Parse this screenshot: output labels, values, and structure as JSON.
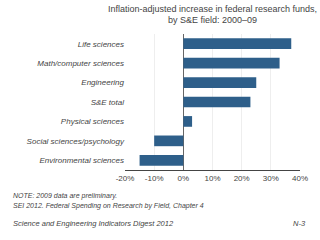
{
  "chart_data": {
    "type": "bar",
    "orientation": "horizontal",
    "title": "Inflation-adjusted increase in federal research funds,\nby S&E field: 2000–09",
    "categories": [
      "Life sciences",
      "Math/computer sciences",
      "Engineering",
      "S&E total",
      "Physical sciences",
      "Social sciences/psychology",
      "Environmental sciences"
    ],
    "values": [
      37,
      33,
      25,
      23,
      3,
      -10,
      -15
    ],
    "color": "#2E5F8A",
    "xlim": [
      -20,
      40
    ],
    "xticks": [
      {
        "value": -20,
        "label": "-20%"
      },
      {
        "value": -10,
        "label": "-10%"
      },
      {
        "value": 0,
        "label": "0%"
      },
      {
        "value": 10,
        "label": "10%"
      },
      {
        "value": 20,
        "label": "20%"
      },
      {
        "value": 30,
        "label": "30%"
      },
      {
        "value": 40,
        "label": "40%"
      }
    ],
    "grid": true,
    "annotations": [
      "NOTE: 2009 data are preliminary.",
      "SEI 2012. Federal Spending on Research by Field, Chapter 4",
      "Science and Engineering Indicators Digest 2012",
      "N-3"
    ]
  }
}
